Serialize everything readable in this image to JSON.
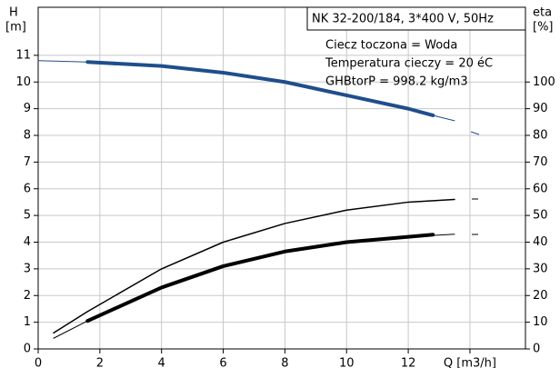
{
  "chart_data": {
    "type": "line",
    "title": "NK 32-200/184, 3*400 V, 50Hz",
    "annotations": [
      "Ciecz toczona = Woda",
      "Temperatura cieczy = 20 éC",
      "GHBtorP = 998.2 kg/m3"
    ],
    "y_label": [
      "H",
      "[m]"
    ],
    "y2_label": [
      "eta",
      "[%]"
    ],
    "xlim": [
      0,
      15.8
    ],
    "xticks": [
      0,
      2,
      4,
      6,
      8,
      10,
      12,
      {
        "value": 14,
        "label": "Q [m3/h]"
      }
    ],
    "ylim": [
      0,
      12.8
    ],
    "yticks": [
      0,
      1,
      2,
      3,
      4,
      5,
      6,
      7,
      8,
      9,
      10,
      11
    ],
    "y2lim": [
      0,
      128
    ],
    "y2ticks": [
      0,
      10,
      20,
      30,
      40,
      50,
      60,
      70,
      80,
      90,
      100
    ],
    "grid": true,
    "series": [
      {
        "color": "#1f4e8c",
        "width": 1,
        "x": [
          0,
          1.6,
          4,
          6,
          8,
          10,
          12,
          12.8,
          13.5
        ],
        "values": [
          10.8,
          10.75,
          10.6,
          10.35,
          10.0,
          9.5,
          9.0,
          8.75,
          8.55
        ]
      },
      {
        "color": "#1f4e8c",
        "width": 4,
        "x": [
          1.6,
          4,
          6,
          8,
          10,
          12,
          12.8
        ],
        "values": [
          10.75,
          10.6,
          10.35,
          10.0,
          9.5,
          9.0,
          8.75
        ]
      },
      {
        "color": "#000000",
        "width": 1.5,
        "axis": "y2",
        "x": [
          0.5,
          1.6,
          4,
          6,
          8,
          10,
          12,
          13.5
        ],
        "values": [
          6,
          14,
          30,
          40,
          47,
          52,
          55,
          56
        ]
      },
      {
        "color": "#000000",
        "width": 1,
        "axis": "y2",
        "x": [
          0.5,
          1.6,
          4,
          6,
          8,
          10,
          12,
          13.5
        ],
        "values": [
          4,
          10.5,
          23,
          31,
          36.5,
          40,
          42,
          43
        ]
      },
      {
        "color": "#000000",
        "width": 4,
        "axis": "y2",
        "x": [
          1.6,
          4,
          6,
          8,
          10,
          12,
          12.8
        ],
        "values": [
          10.5,
          23,
          31,
          36.5,
          40,
          42,
          42.8
        ]
      }
    ]
  }
}
